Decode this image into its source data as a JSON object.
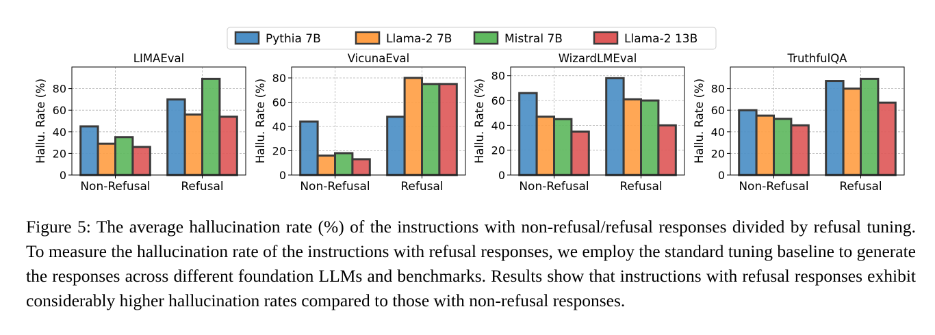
{
  "legend": {
    "entries": [
      {
        "name": "Pythia 7B",
        "color": "#4c8fc6"
      },
      {
        "name": "Llama-2 7B",
        "color": "#ff9f46"
      },
      {
        "name": "Mistral 7B",
        "color": "#5fb95f"
      },
      {
        "name": "Llama-2 13B",
        "color": "#de5a5a"
      }
    ],
    "placement": "top-center"
  },
  "chart_data": [
    {
      "type": "bar",
      "title": "LIMAEval",
      "ylabel": "Hallu. Rate (%)",
      "categories": [
        "Non-Refusal",
        "Refusal"
      ],
      "yticks": [
        0,
        20,
        40,
        60,
        80
      ],
      "ylim": [
        0,
        100
      ],
      "grid": true,
      "series": [
        {
          "name": "Pythia 7B",
          "values": [
            45,
            70
          ]
        },
        {
          "name": "Llama-2 7B",
          "values": [
            29,
            56
          ]
        },
        {
          "name": "Mistral 7B",
          "values": [
            35,
            89
          ]
        },
        {
          "name": "Llama-2 13B",
          "values": [
            26,
            54
          ]
        }
      ]
    },
    {
      "type": "bar",
      "title": "VicunaEval",
      "ylabel": "Hallu. Rate (%)",
      "categories": [
        "Non-Refusal",
        "Refusal"
      ],
      "yticks": [
        0,
        20,
        40,
        60,
        80
      ],
      "ylim": [
        0,
        89
      ],
      "grid": true,
      "series": [
        {
          "name": "Pythia 7B",
          "values": [
            44,
            48
          ]
        },
        {
          "name": "Llama-2 7B",
          "values": [
            16,
            80
          ]
        },
        {
          "name": "Mistral 7B",
          "values": [
            18,
            75
          ]
        },
        {
          "name": "Llama-2 13B",
          "values": [
            13,
            75
          ]
        }
      ]
    },
    {
      "type": "bar",
      "title": "WizardLMEval",
      "ylabel": "Hallu. Rate (%)",
      "categories": [
        "Non-Refusal",
        "Refusal"
      ],
      "yticks": [
        0,
        20,
        40,
        60,
        80
      ],
      "ylim": [
        0,
        87
      ],
      "grid": true,
      "series": [
        {
          "name": "Pythia 7B",
          "values": [
            66,
            78
          ]
        },
        {
          "name": "Llama-2 7B",
          "values": [
            47,
            61
          ]
        },
        {
          "name": "Mistral 7B",
          "values": [
            45,
            60
          ]
        },
        {
          "name": "Llama-2 13B",
          "values": [
            35,
            40
          ]
        }
      ]
    },
    {
      "type": "bar",
      "title": "TruthfulQA",
      "ylabel": "Hallu. Rate (%)",
      "categories": [
        "Non-Refusal",
        "Refusal"
      ],
      "yticks": [
        0,
        20,
        40,
        60,
        80
      ],
      "ylim": [
        0,
        100
      ],
      "grid": true,
      "series": [
        {
          "name": "Pythia 7B",
          "values": [
            60,
            87
          ]
        },
        {
          "name": "Llama-2 7B",
          "values": [
            55,
            80
          ]
        },
        {
          "name": "Mistral 7B",
          "values": [
            52,
            89
          ]
        },
        {
          "name": "Llama-2 13B",
          "values": [
            46,
            67
          ]
        }
      ]
    }
  ],
  "caption": "Figure 5: The average hallucination rate (%) of the instructions with non-refusal/refusal responses divided by refusal tuning. To measure the hallucination rate of the instructions with refusal responses, we employ the standard tuning baseline to generate the responses across different foundation LLMs and benchmarks. Results show that instructions with refusal responses exhibit considerably higher hallucination rates compared to those with non-refusal responses."
}
